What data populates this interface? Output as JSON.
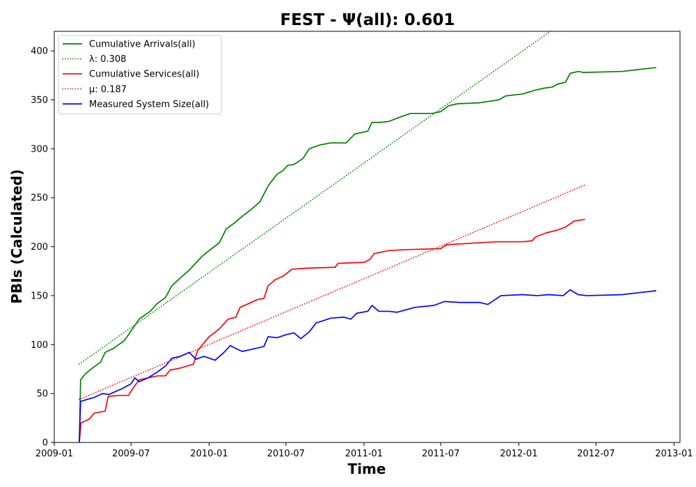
{
  "chart_data": {
    "type": "line",
    "title": "FEST -  Ψ(all): 0.601",
    "xlabel": "Time",
    "ylabel": "PBIs (Calculated)",
    "xlim": [
      "2009-01-01",
      "2013-01-15"
    ],
    "ylim": [
      0,
      420
    ],
    "x_ticks": [
      "2009-01",
      "2009-07",
      "2010-01",
      "2010-07",
      "2011-01",
      "2011-07",
      "2012-01",
      "2012-07",
      "2013-01"
    ],
    "y_ticks": [
      0,
      50,
      100,
      150,
      200,
      250,
      300,
      350,
      400
    ],
    "grid": false,
    "legend_position": "top-left",
    "series": [
      {
        "name": "Cumulative Arrivals(all)",
        "color": "#008000",
        "style": "solid",
        "points": [
          [
            "2009-03-01",
            0
          ],
          [
            "2009-03-04",
            64
          ],
          [
            "2009-03-15",
            70
          ],
          [
            "2009-04-01",
            76
          ],
          [
            "2009-04-20",
            82
          ],
          [
            "2009-05-01",
            92
          ],
          [
            "2009-05-20",
            96
          ],
          [
            "2009-06-15",
            104
          ],
          [
            "2009-07-01",
            114
          ],
          [
            "2009-07-20",
            126
          ],
          [
            "2009-08-15",
            134
          ],
          [
            "2009-09-01",
            142
          ],
          [
            "2009-09-20",
            148
          ],
          [
            "2009-10-05",
            160
          ],
          [
            "2009-10-25",
            168
          ],
          [
            "2009-11-15",
            176
          ],
          [
            "2009-12-15",
            190
          ],
          [
            "2010-01-01",
            196
          ],
          [
            "2010-01-25",
            204
          ],
          [
            "2010-02-10",
            218
          ],
          [
            "2010-03-01",
            224
          ],
          [
            "2010-03-20",
            231
          ],
          [
            "2010-04-10",
            238
          ],
          [
            "2010-05-01",
            246
          ],
          [
            "2010-05-20",
            262
          ],
          [
            "2010-06-10",
            274
          ],
          [
            "2010-06-25",
            278
          ],
          [
            "2010-07-05",
            283
          ],
          [
            "2010-07-20",
            284
          ],
          [
            "2010-08-10",
            290
          ],
          [
            "2010-08-25",
            300
          ],
          [
            "2010-09-20",
            304
          ],
          [
            "2010-10-15",
            306
          ],
          [
            "2010-11-20",
            306
          ],
          [
            "2010-12-10",
            315
          ],
          [
            "2011-01-10",
            318
          ],
          [
            "2011-01-20",
            327
          ],
          [
            "2011-02-10",
            327
          ],
          [
            "2011-03-01",
            328
          ],
          [
            "2011-03-25",
            332
          ],
          [
            "2011-04-20",
            336
          ],
          [
            "2011-05-15",
            336
          ],
          [
            "2011-06-10",
            336
          ],
          [
            "2011-07-01",
            338
          ],
          [
            "2011-07-20",
            344
          ],
          [
            "2011-08-10",
            346
          ],
          [
            "2011-10-01",
            347
          ],
          [
            "2011-11-15",
            350
          ],
          [
            "2011-12-01",
            354
          ],
          [
            "2012-01-10",
            356
          ],
          [
            "2012-02-10",
            360
          ],
          [
            "2012-03-01",
            362
          ],
          [
            "2012-03-20",
            363
          ],
          [
            "2012-04-01",
            366
          ],
          [
            "2012-04-20",
            368
          ],
          [
            "2012-05-01",
            377
          ],
          [
            "2012-05-20",
            379
          ],
          [
            "2012-06-01",
            378
          ],
          [
            "2012-09-01",
            379
          ],
          [
            "2012-10-10",
            381
          ],
          [
            "2012-11-20",
            383
          ]
        ]
      },
      {
        "name": "λ: 0.308",
        "color": "#008000",
        "style": "dotted",
        "points": [
          [
            "2009-03-01",
            80
          ],
          [
            "2012-04-01",
            425
          ]
        ]
      },
      {
        "name": "Cumulative Services(all)",
        "color": "#ff0000",
        "style": "solid",
        "points": [
          [
            "2009-03-01",
            0
          ],
          [
            "2009-03-05",
            20
          ],
          [
            "2009-03-25",
            24
          ],
          [
            "2009-04-05",
            30
          ],
          [
            "2009-05-01",
            32
          ],
          [
            "2009-05-08",
            47
          ],
          [
            "2009-06-01",
            48
          ],
          [
            "2009-06-25",
            48
          ],
          [
            "2009-07-05",
            55
          ],
          [
            "2009-07-20",
            64
          ],
          [
            "2009-08-10",
            66
          ],
          [
            "2009-09-01",
            68
          ],
          [
            "2009-09-20",
            68
          ],
          [
            "2009-10-01",
            74
          ],
          [
            "2009-10-25",
            76
          ],
          [
            "2009-11-10",
            78
          ],
          [
            "2009-11-25",
            80
          ],
          [
            "2009-12-05",
            94
          ],
          [
            "2010-01-01",
            108
          ],
          [
            "2010-01-25",
            116
          ],
          [
            "2010-02-15",
            126
          ],
          [
            "2010-03-05",
            128
          ],
          [
            "2010-03-15",
            138
          ],
          [
            "2010-04-05",
            142
          ],
          [
            "2010-04-25",
            146
          ],
          [
            "2010-05-10",
            147
          ],
          [
            "2010-05-20",
            160
          ],
          [
            "2010-06-05",
            166
          ],
          [
            "2010-06-25",
            170
          ],
          [
            "2010-07-15",
            177
          ],
          [
            "2010-08-20",
            178
          ],
          [
            "2010-10-25",
            179
          ],
          [
            "2010-11-01",
            183
          ],
          [
            "2011-01-01",
            184
          ],
          [
            "2011-01-15",
            187
          ],
          [
            "2011-01-25",
            193
          ],
          [
            "2011-03-01",
            196
          ],
          [
            "2011-04-10",
            197
          ],
          [
            "2011-07-01",
            198
          ],
          [
            "2011-07-15",
            202
          ],
          [
            "2011-10-01",
            204
          ],
          [
            "2011-11-10",
            205
          ],
          [
            "2012-01-10",
            205
          ],
          [
            "2012-02-01",
            206
          ],
          [
            "2012-02-10",
            210
          ],
          [
            "2012-03-05",
            214
          ],
          [
            "2012-04-01",
            217
          ],
          [
            "2012-04-20",
            220
          ],
          [
            "2012-05-10",
            226
          ],
          [
            "2012-06-05",
            228
          ]
        ]
      },
      {
        "name": "μ: 0.187",
        "color": "#ff0000",
        "style": "dotted",
        "points": [
          [
            "2009-03-01",
            44
          ],
          [
            "2012-06-05",
            263
          ]
        ]
      },
      {
        "name": "Measured System Size(all)",
        "color": "#0000ff",
        "style": "solid",
        "points": [
          [
            "2009-03-01",
            0
          ],
          [
            "2009-03-04",
            42
          ],
          [
            "2009-03-20",
            44
          ],
          [
            "2009-04-05",
            46
          ],
          [
            "2009-04-25",
            50
          ],
          [
            "2009-05-10",
            49
          ],
          [
            "2009-05-25",
            52
          ],
          [
            "2009-06-10",
            55
          ],
          [
            "2009-07-01",
            60
          ],
          [
            "2009-07-10",
            66
          ],
          [
            "2009-07-20",
            62
          ],
          [
            "2009-08-10",
            66
          ],
          [
            "2009-09-01",
            72
          ],
          [
            "2009-09-20",
            78
          ],
          [
            "2009-10-05",
            86
          ],
          [
            "2009-10-25",
            88
          ],
          [
            "2009-11-15",
            92
          ],
          [
            "2009-12-01",
            85
          ],
          [
            "2009-12-20",
            88
          ],
          [
            "2010-01-15",
            84
          ],
          [
            "2010-02-05",
            92
          ],
          [
            "2010-02-20",
            99
          ],
          [
            "2010-03-05",
            96
          ],
          [
            "2010-03-20",
            93
          ],
          [
            "2010-04-10",
            95
          ],
          [
            "2010-05-10",
            98
          ],
          [
            "2010-05-20",
            108
          ],
          [
            "2010-06-10",
            107
          ],
          [
            "2010-07-01",
            110
          ],
          [
            "2010-07-20",
            112
          ],
          [
            "2010-08-05",
            106
          ],
          [
            "2010-08-25",
            113
          ],
          [
            "2010-09-10",
            122
          ],
          [
            "2010-10-15",
            127
          ],
          [
            "2010-11-15",
            128
          ],
          [
            "2010-12-01",
            126
          ],
          [
            "2010-12-15",
            132
          ],
          [
            "2011-01-10",
            134
          ],
          [
            "2011-01-20",
            140
          ],
          [
            "2011-02-05",
            134
          ],
          [
            "2011-03-01",
            134
          ],
          [
            "2011-03-20",
            133
          ],
          [
            "2011-05-01",
            138
          ],
          [
            "2011-06-15",
            140
          ],
          [
            "2011-07-10",
            144
          ],
          [
            "2011-08-15",
            143
          ],
          [
            "2011-10-01",
            143
          ],
          [
            "2011-10-20",
            141
          ],
          [
            "2011-11-20",
            150
          ],
          [
            "2012-01-10",
            151
          ],
          [
            "2012-02-15",
            150
          ],
          [
            "2012-03-10",
            151
          ],
          [
            "2012-04-15",
            150
          ],
          [
            "2012-05-01",
            156
          ],
          [
            "2012-05-20",
            151
          ],
          [
            "2012-06-10",
            150
          ],
          [
            "2012-09-01",
            151
          ],
          [
            "2012-10-10",
            153
          ],
          [
            "2012-11-20",
            155
          ]
        ]
      }
    ]
  }
}
